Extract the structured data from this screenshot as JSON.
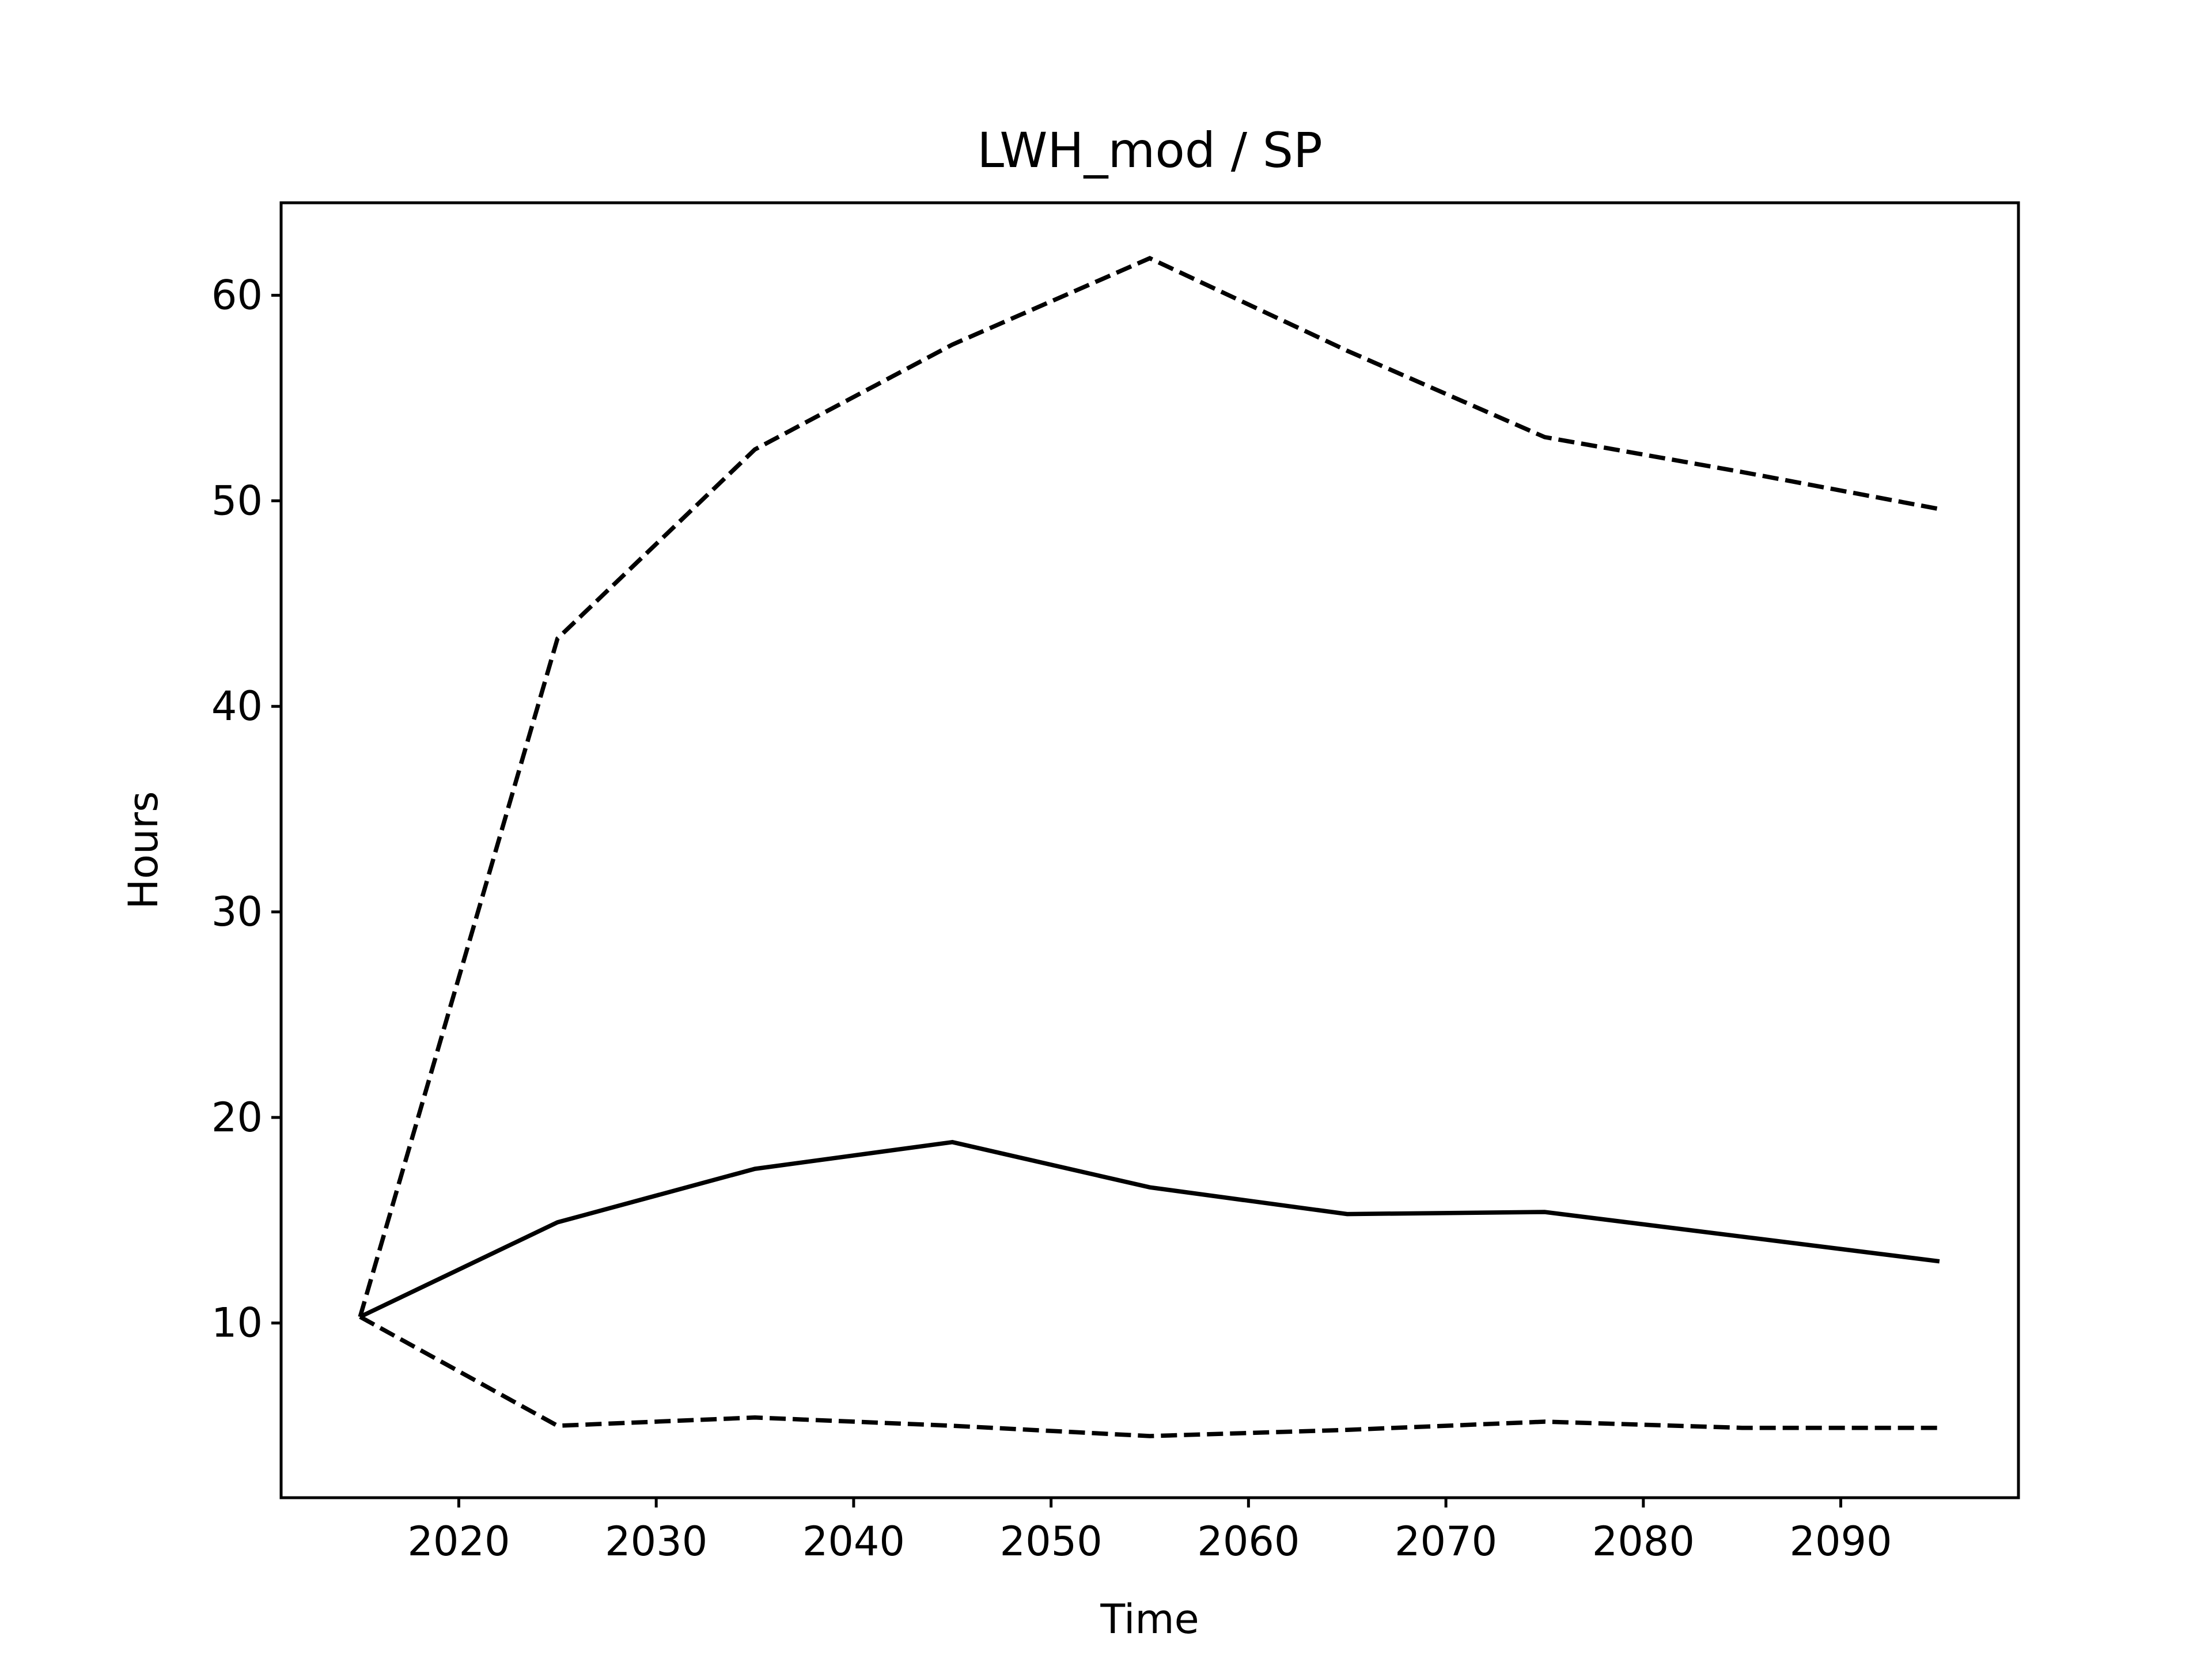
{
  "chart_data": {
    "type": "line",
    "title": "LWH_mod / SP",
    "xlabel": "Time",
    "ylabel": "Hours",
    "x": [
      2015,
      2025,
      2035,
      2045,
      2055,
      2065,
      2075,
      2085,
      2095
    ],
    "xlim": [
      2011,
      2099
    ],
    "ylim": [
      1.5,
      64.5
    ],
    "xticks": [
      2020,
      2030,
      2040,
      2050,
      2060,
      2070,
      2080,
      2090
    ],
    "yticks": [
      10,
      20,
      30,
      40,
      50,
      60
    ],
    "grid": false,
    "legend": "none",
    "series": [
      {
        "style": "dashed",
        "color": "#000000",
        "values": [
          10.3,
          43.3,
          52.5,
          57.6,
          61.8,
          57.3,
          53.1,
          51.4,
          49.6
        ]
      },
      {
        "style": "solid",
        "color": "#000000",
        "values": [
          10.3,
          14.9,
          17.5,
          18.8,
          16.6,
          15.3,
          15.4,
          14.2,
          13.0
        ]
      },
      {
        "style": "dashed",
        "color": "#000000",
        "values": [
          10.3,
          5.0,
          5.4,
          5.0,
          4.5,
          4.8,
          5.2,
          4.9,
          4.9
        ]
      }
    ]
  }
}
